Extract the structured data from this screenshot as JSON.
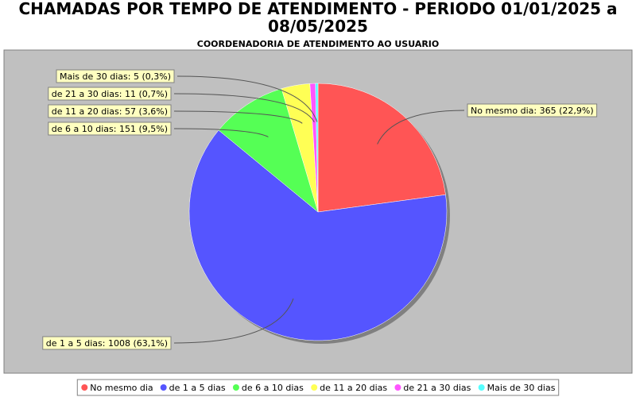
{
  "chart_data": {
    "type": "pie",
    "title": "CHAMADAS POR TEMPO DE ATENDIMENTO - PERIODO 01/01/2025 a 08/05/2025",
    "subtitle": "COORDENADORIA DE ATENDIMENTO AO USUARIO",
    "categories": [
      "No mesmo dia",
      "de 1 a 5 dias",
      "de 6 a 10 dias",
      "de 11 a 20 dias",
      "de 21 a 30 dias",
      "Mais de 30 dias"
    ],
    "values": [
      365,
      1008,
      151,
      57,
      11,
      5
    ],
    "value_labels": [
      "No mesmo dia: 365 (22,9%)",
      "de 1 a 5 dias: 1008 (63,1%)",
      "de 6 a 10 dias: 151 (9,5%)",
      "de 11 a 20 dias: 57 (3,6%)",
      "de 21 a 30 dias: 11 (0,7%)",
      "Mais de 30 dias: 5 (0,3%)"
    ],
    "colors": [
      "#ff5555",
      "#5555ff",
      "#55ff55",
      "#ffff55",
      "#ff55ff",
      "#55ffff"
    ],
    "legend": "bottom"
  }
}
